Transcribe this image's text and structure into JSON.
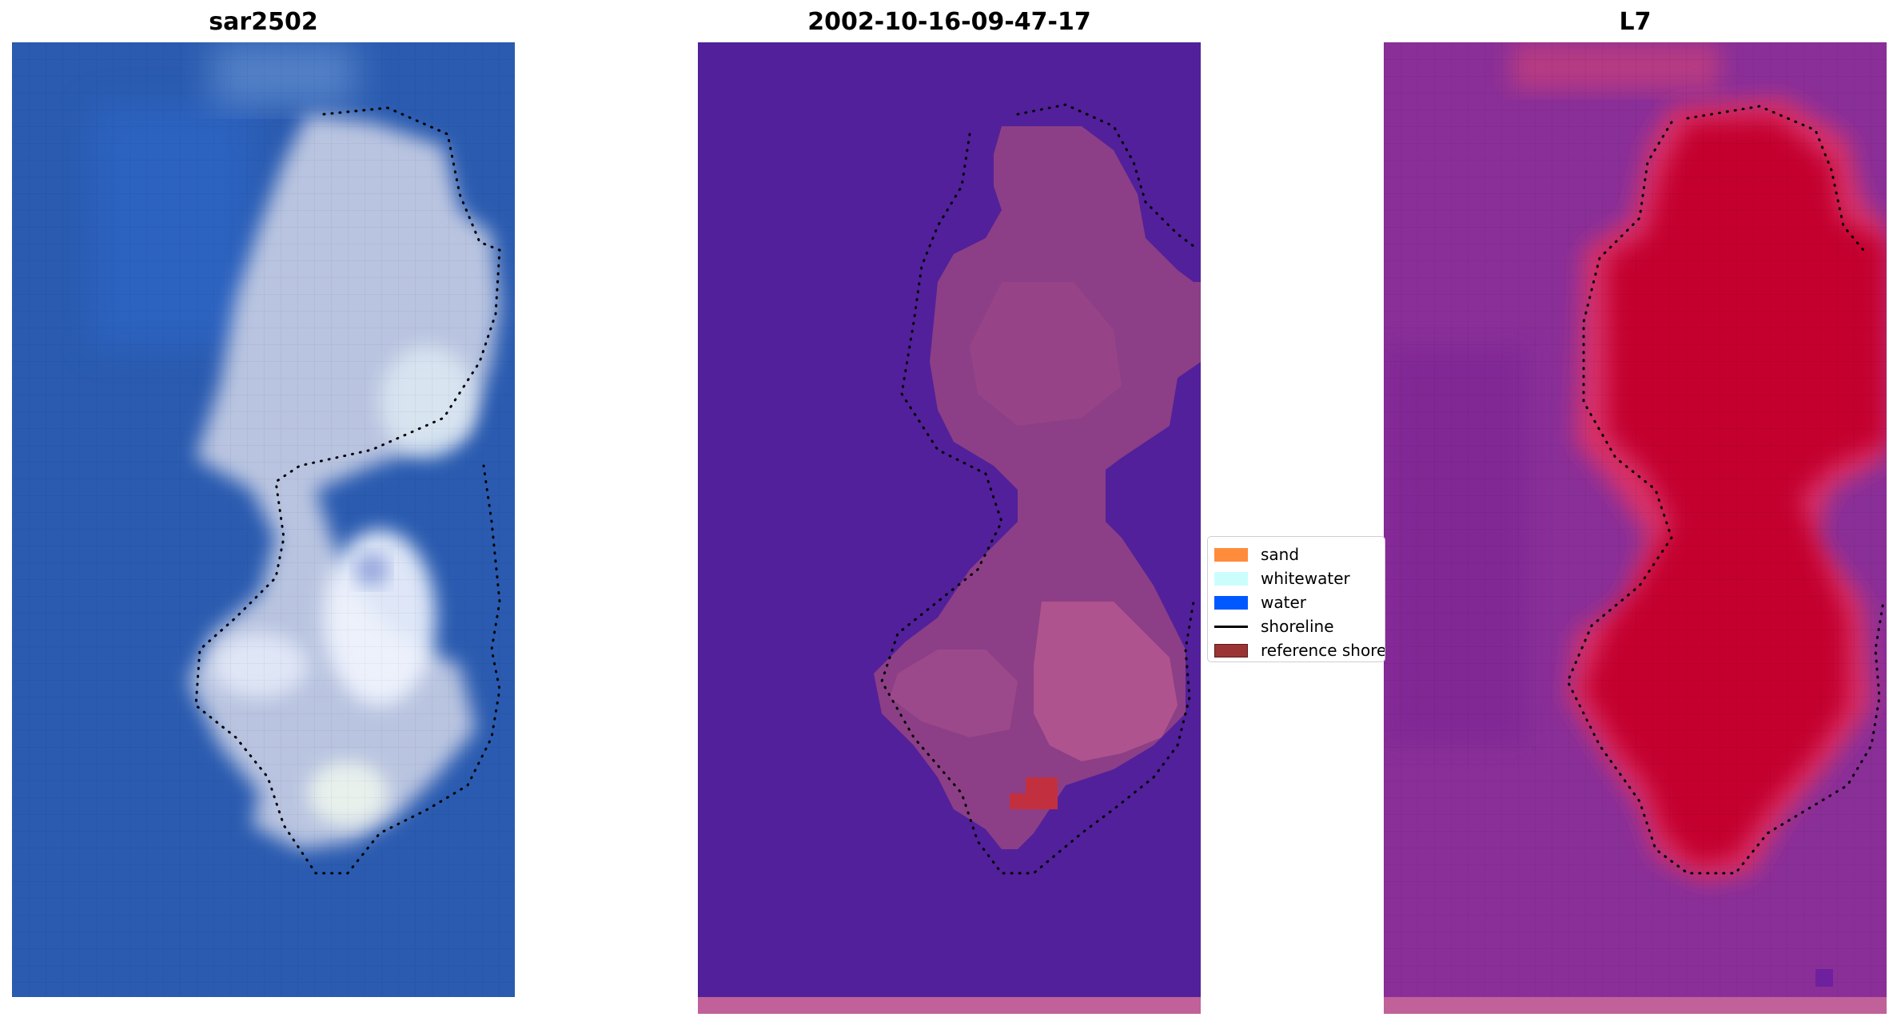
{
  "panels": {
    "rgb": {
      "title": "sar2502"
    },
    "classified": {
      "title": "2002-10-16-09-47-17"
    },
    "index": {
      "title": "L7"
    }
  },
  "legend": {
    "items": [
      {
        "label": "sand",
        "kind": "patch",
        "color": "#ff8c3a"
      },
      {
        "label": "whitewater",
        "kind": "patch",
        "color": "#ccfdfd"
      },
      {
        "label": "water",
        "kind": "patch",
        "color": "#0059ff"
      },
      {
        "label": "shoreline",
        "kind": "line",
        "color": "#000000"
      },
      {
        "label": "reference shoreline",
        "kind": "patch",
        "color": "#9b3535"
      }
    ]
  },
  "colors": {
    "rgb_water": "#2a5bb0",
    "rgb_land": "#c8d2e6",
    "rgb_bright": "#eef4ff",
    "class_background": "#52209a",
    "class_land": "#8c3f86",
    "class_land_light": "#b5578f",
    "class_patch": "#c23040",
    "index_background": "#8a2f98",
    "index_land": "#c4062f",
    "index_edge": "#d8306a",
    "bottom_strip": "#c0619a",
    "shoreline_dots": "#000000"
  }
}
